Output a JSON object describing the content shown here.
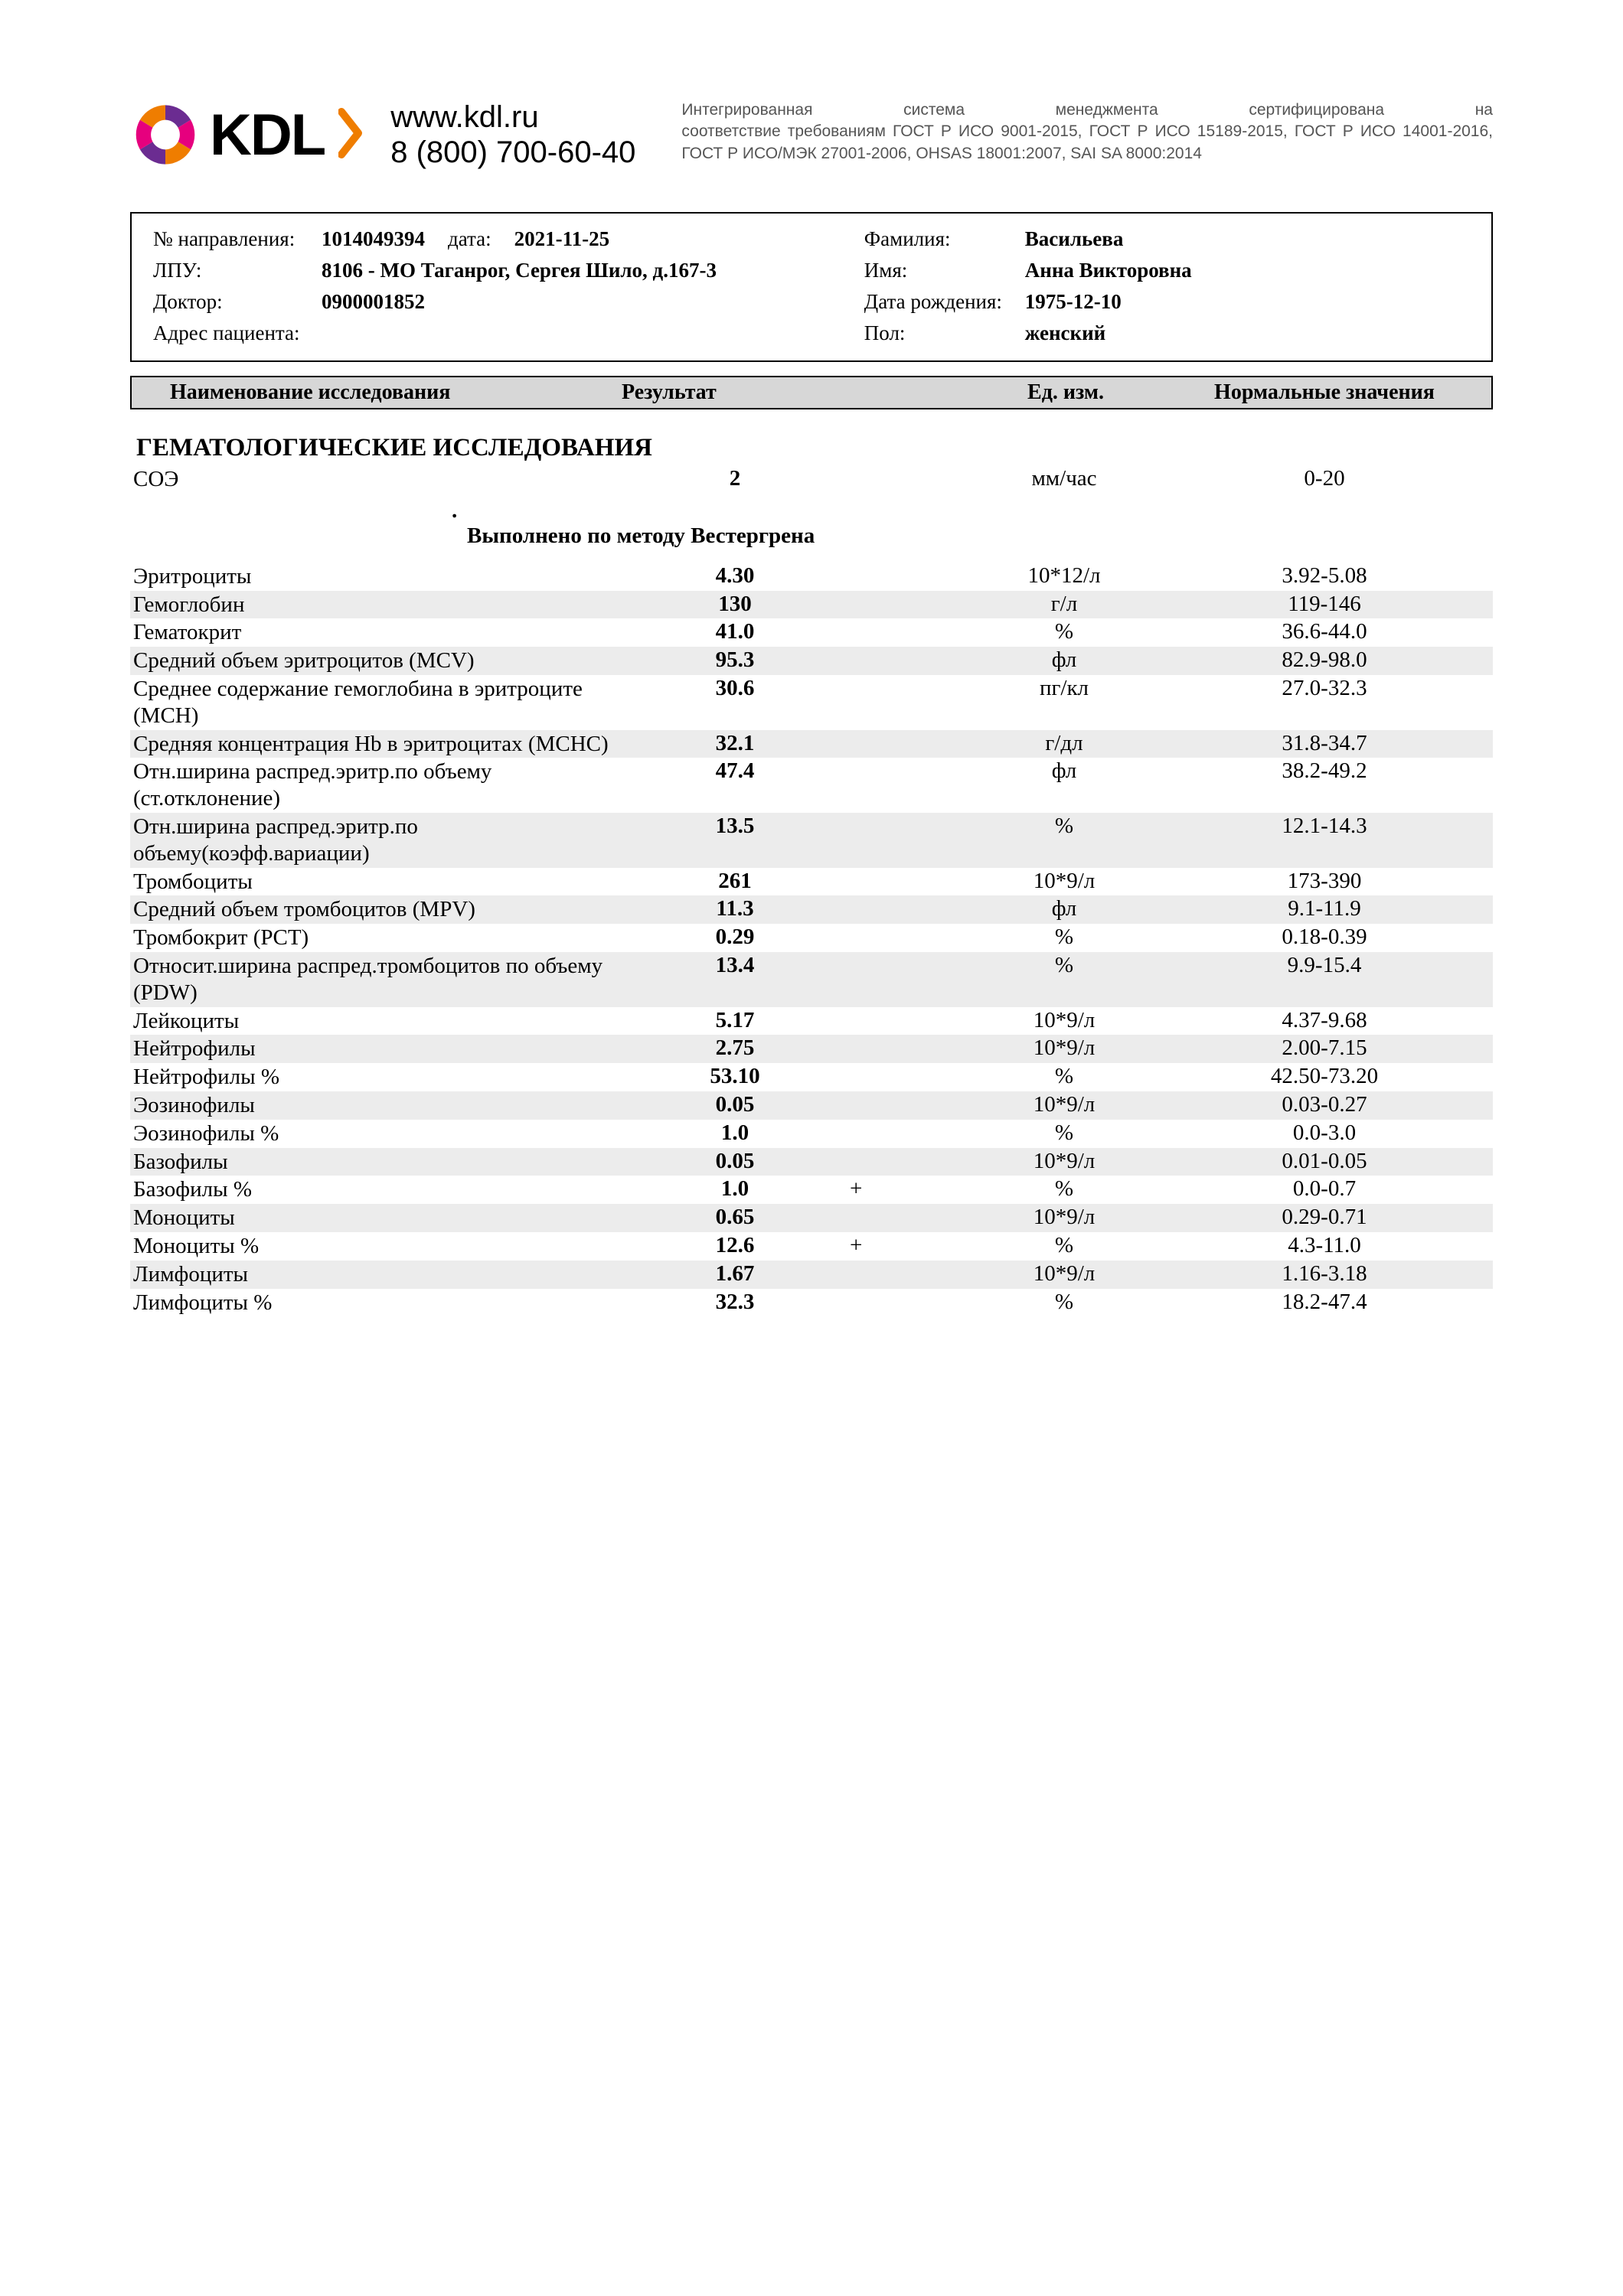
{
  "header": {
    "logo_text": "KDL",
    "site": "www.kdl.ru",
    "phone": "8 (800) 700-60-40",
    "cert_line1": "Интегрированная система менеджмента сертифицирована на",
    "cert_rest": "соответствие требованиям ГОСТ Р ИСО 9001-2015, ГОСТ Р ИСО 15189-2015, ГОСТ Р ИСО 14001-2016, ГОСТ Р ИСО/МЭК 27001-2006, OHSAS 18001:2007, SAI SA 8000:2014",
    "logo_colors": {
      "a": "#6b2c91",
      "b": "#e6007e",
      "c": "#ef7d00"
    }
  },
  "info": {
    "labels": {
      "referral_no": "№ направления:",
      "date": "дата:",
      "lpu": "ЛПУ:",
      "doctor": "Доктор:",
      "patient_addr": "Адрес пациента:",
      "surname": "Фамилия:",
      "name": "Имя:",
      "dob": "Дата рождения:",
      "sex": "Пол:"
    },
    "referral_no": "1014049394",
    "date": "2021-11-25",
    "lpu": "8106 - МО Таганрог, Сергея Шило, д.167-3",
    "doctor": "0900001852",
    "patient_addr": "",
    "surname": "Васильева",
    "name": "Анна Викторовна",
    "dob": "1975-12-10",
    "sex": "женский"
  },
  "columns": {
    "name": "Наименование исследования",
    "result": "Результат",
    "unit": "Ед. изм.",
    "ref": "Нормальные значения"
  },
  "section_title": "ГЕМАТОЛОГИЧЕСКИЕ ИССЛЕДОВАНИЯ",
  "note": "Выполнено по методу Вестергрена",
  "rows_pre": [
    {
      "name": "СОЭ",
      "result": "2",
      "flag": "",
      "unit": "мм/час",
      "ref": "0-20",
      "shaded": false
    }
  ],
  "rows": [
    {
      "name": "Эритроциты",
      "result": "4.30",
      "flag": "",
      "unit": "10*12/л",
      "ref": "3.92-5.08",
      "shaded": false
    },
    {
      "name": "Гемоглобин",
      "result": "130",
      "flag": "",
      "unit": "г/л",
      "ref": "119-146",
      "shaded": true
    },
    {
      "name": "Гематокрит",
      "result": "41.0",
      "flag": "",
      "unit": "%",
      "ref": "36.6-44.0",
      "shaded": false
    },
    {
      "name": "Средний объем эритроцитов (MCV)",
      "result": "95.3",
      "flag": "",
      "unit": "фл",
      "ref": "82.9-98.0",
      "shaded": true
    },
    {
      "name": "Среднее содержание гемоглобина в эритроците (MCH)",
      "result": "30.6",
      "flag": "",
      "unit": "пг/кл",
      "ref": "27.0-32.3",
      "shaded": false
    },
    {
      "name": "Средняя концентрация Hb в эритроцитах (MCHC)",
      "result": "32.1",
      "flag": "",
      "unit": "г/дл",
      "ref": "31.8-34.7",
      "shaded": true
    },
    {
      "name": "Отн.ширина распред.эритр.по объему (ст.отклонение)",
      "result": "47.4",
      "flag": "",
      "unit": "фл",
      "ref": "38.2-49.2",
      "shaded": false
    },
    {
      "name": "Отн.ширина распред.эритр.по объему(коэфф.вариации)",
      "result": "13.5",
      "flag": "",
      "unit": "%",
      "ref": "12.1-14.3",
      "shaded": true
    },
    {
      "name": "Тромбоциты",
      "result": "261",
      "flag": "",
      "unit": "10*9/л",
      "ref": "173-390",
      "shaded": false
    },
    {
      "name": "Средний объем тромбоцитов (MPV)",
      "result": "11.3",
      "flag": "",
      "unit": "фл",
      "ref": "9.1-11.9",
      "shaded": true
    },
    {
      "name": "Тромбокрит (PCT)",
      "result": "0.29",
      "flag": "",
      "unit": "%",
      "ref": "0.18-0.39",
      "shaded": false
    },
    {
      "name": "Относит.ширина распред.тромбоцитов по объему (PDW)",
      "result": "13.4",
      "flag": "",
      "unit": "%",
      "ref": "9.9-15.4",
      "shaded": true
    },
    {
      "name": "Лейкоциты",
      "result": "5.17",
      "flag": "",
      "unit": "10*9/л",
      "ref": "4.37-9.68",
      "shaded": false
    },
    {
      "name": "Нейтрофилы",
      "result": "2.75",
      "flag": "",
      "unit": "10*9/л",
      "ref": "2.00-7.15",
      "shaded": true
    },
    {
      "name": "Нейтрофилы %",
      "result": "53.10",
      "flag": "",
      "unit": "%",
      "ref": "42.50-73.20",
      "shaded": false
    },
    {
      "name": "Эозинофилы",
      "result": "0.05",
      "flag": "",
      "unit": "10*9/л",
      "ref": "0.03-0.27",
      "shaded": true
    },
    {
      "name": "Эозинофилы %",
      "result": "1.0",
      "flag": "",
      "unit": "%",
      "ref": "0.0-3.0",
      "shaded": false
    },
    {
      "name": "Базофилы",
      "result": "0.05",
      "flag": "",
      "unit": "10*9/л",
      "ref": "0.01-0.05",
      "shaded": true
    },
    {
      "name": "Базофилы %",
      "result": "1.0",
      "flag": "+",
      "unit": "%",
      "ref": "0.0-0.7",
      "shaded": false
    },
    {
      "name": "Моноциты",
      "result": "0.65",
      "flag": "",
      "unit": "10*9/л",
      "ref": "0.29-0.71",
      "shaded": true
    },
    {
      "name": "Моноциты %",
      "result": "12.6",
      "flag": "+",
      "unit": "%",
      "ref": "4.3-11.0",
      "shaded": false
    },
    {
      "name": "Лимфоциты",
      "result": "1.67",
      "flag": "",
      "unit": "10*9/л",
      "ref": "1.16-3.18",
      "shaded": true
    },
    {
      "name": "Лимфоциты %",
      "result": "32.3",
      "flag": "",
      "unit": "%",
      "ref": "18.2-47.4",
      "shaded": false
    }
  ]
}
